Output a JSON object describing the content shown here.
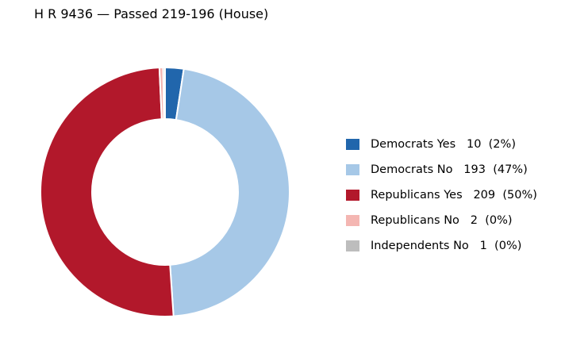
{
  "chart_data": {
    "type": "pie",
    "title": "H R 9436 — Passed 219-196 (House)",
    "series": [
      {
        "name": "Democrats Yes",
        "value": 10,
        "percent_label": "(2%)",
        "color": "#2166ac"
      },
      {
        "name": "Democrats No",
        "value": 193,
        "percent_label": "(47%)",
        "color": "#a6c8e7"
      },
      {
        "name": "Republicans Yes",
        "value": 209,
        "percent_label": "(50%)",
        "color": "#b2182b"
      },
      {
        "name": "Republicans No",
        "value": 2,
        "percent_label": "(0%)",
        "color": "#f4b6b2"
      },
      {
        "name": "Independents No",
        "value": 1,
        "percent_label": "(0%)",
        "color": "#bdbdbd"
      }
    ],
    "legend_placement": "right",
    "donut": true
  }
}
